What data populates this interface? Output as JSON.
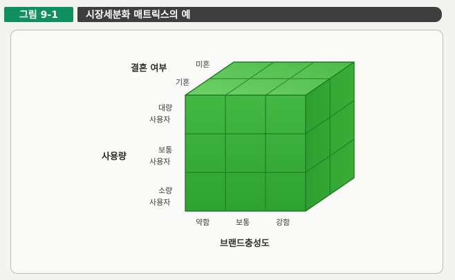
{
  "figure": {
    "label": "그림 9-1",
    "title": "시장세분화 매트릭스의 예"
  },
  "diagram": {
    "marriage_axis": {
      "title": "결혼 여부",
      "values": [
        "미혼",
        "기혼"
      ]
    },
    "usage_axis": {
      "title": "사용량",
      "levels": [
        {
          "line1": "대량",
          "line2": "사용자"
        },
        {
          "line1": "보통",
          "line2": "사용자"
        },
        {
          "line1": "소량",
          "line2": "사용자"
        }
      ]
    },
    "loyalty_axis": {
      "title": "브랜드충성도",
      "values": [
        "약함",
        "보통",
        "강함"
      ]
    },
    "colors": {
      "front": "#34ac34",
      "top": "#5fc85a",
      "side": "#2b9a2d",
      "grid_line": "#1d7a22",
      "header_green": "#10905e",
      "header_dark": "#3e3e3e"
    }
  }
}
